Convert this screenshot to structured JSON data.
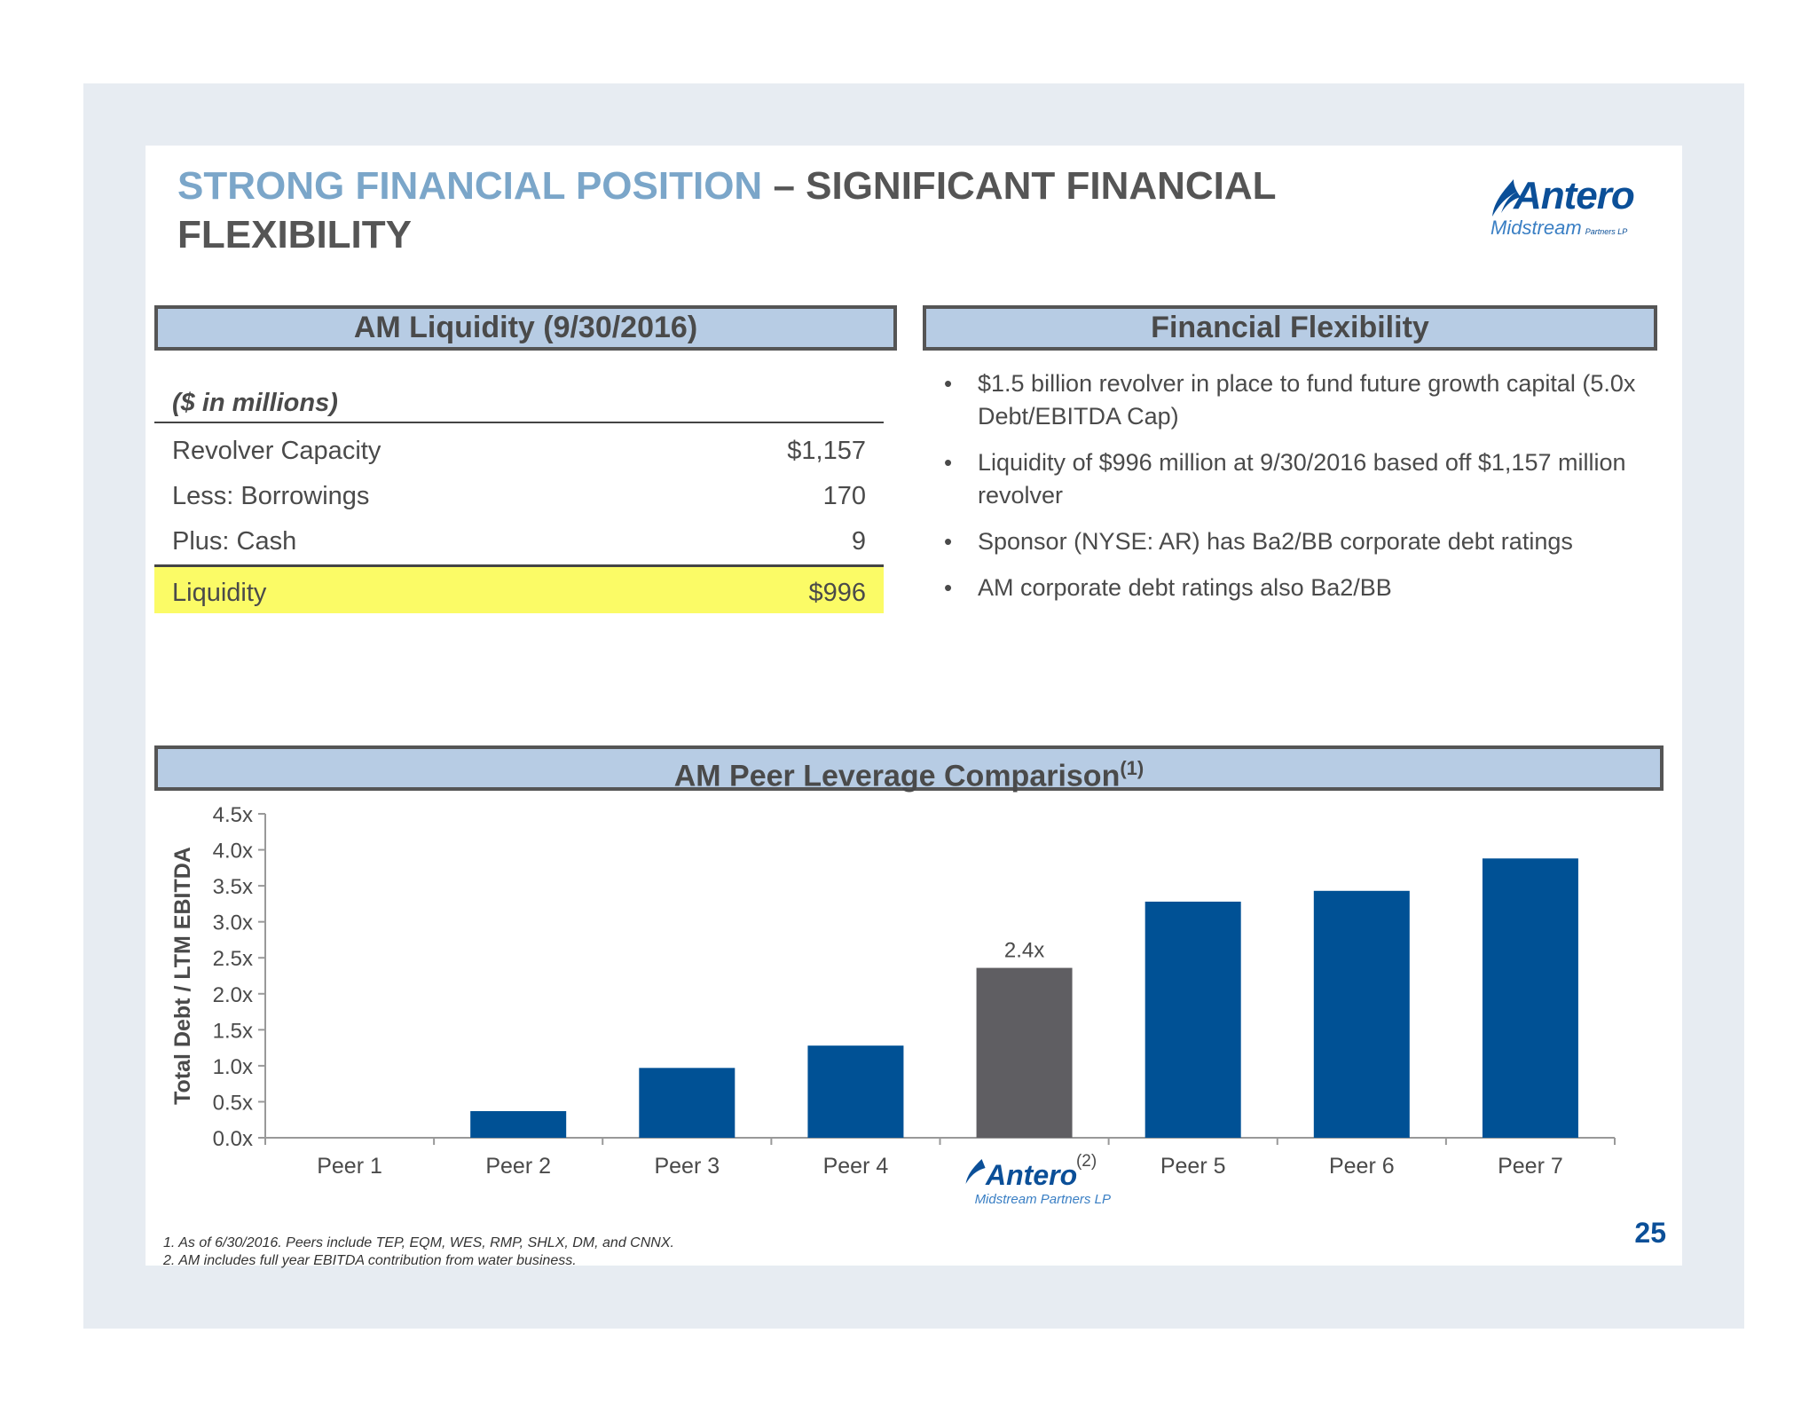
{
  "title": {
    "accent": "STRONG FINANCIAL POSITION",
    "rest": " – SIGNIFICANT FINANCIAL FLEXIBILITY"
  },
  "logo": {
    "word": "Antero",
    "sub": "Midstream",
    "tag": "Partners LP"
  },
  "liquidity": {
    "header": "AM Liquidity (9/30/2016)",
    "units": "($ in millions)",
    "rows": [
      {
        "label": "Revolver Capacity",
        "value": "$1,157"
      },
      {
        "label": "Less: Borrowings",
        "value": "170"
      },
      {
        "label": "Plus: Cash",
        "value": "9"
      }
    ],
    "total": {
      "label": "Liquidity",
      "value": "$996"
    }
  },
  "flexibility": {
    "header": "Financial Flexibility",
    "bullets": [
      "$1.5 billion revolver in place to fund future growth capital (5.0x Debt/EBITDA Cap)",
      "Liquidity of $996 million at 9/30/2016 based off $1,157 million revolver",
      "Sponsor (NYSE: AR) has Ba2/BB corporate debt ratings",
      "AM corporate debt ratings also Ba2/BB"
    ]
  },
  "chart_header": {
    "text": "AM Peer Leverage Comparison",
    "superscript": "(1)"
  },
  "chart_data": {
    "type": "bar",
    "ylabel": "Total Debt / LTM EBITDA",
    "ylim": [
      0,
      4.5
    ],
    "yticks": [
      "0.0x",
      "0.5x",
      "1.0x",
      "1.5x",
      "2.0x",
      "2.5x",
      "3.0x",
      "3.5x",
      "4.0x",
      "4.5x"
    ],
    "categories": [
      "Peer 1",
      "Peer 2",
      "Peer 3",
      "Peer 4",
      "Antero",
      "Peer 5",
      "Peer 6",
      "Peer 7"
    ],
    "values": [
      0,
      0.37,
      0.97,
      1.28,
      2.36,
      3.28,
      3.43,
      3.88
    ],
    "data_labels": [
      "",
      "",
      "",
      "",
      "2.4x",
      "",
      "",
      ""
    ],
    "highlight_index": 4,
    "highlight_footnote": "(2)",
    "colors": {
      "bar": "#005195",
      "highlight": "#5f5e62"
    },
    "grid": false,
    "legend": "none"
  },
  "footnotes": [
    "1.  As of 6/30/2016.  Peers include TEP, EQM, WES, RMP, SHLX, DM, and CNNX.",
    "2.  AM includes full year EBITDA contribution from water business."
  ],
  "page_number": "25"
}
